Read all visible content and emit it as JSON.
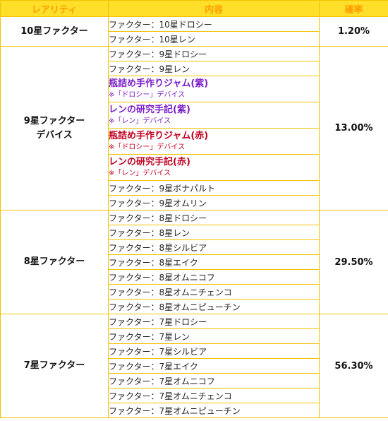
{
  "headers": {
    "rarity": "レアリティ",
    "contents": "内容",
    "rate": "確率"
  },
  "groups": [
    {
      "rarity_lines": [
        "10星ファクター"
      ],
      "rate": "1.20%",
      "items": [
        {
          "kind": "plain",
          "text": "ファクター：10星ドロシー"
        },
        {
          "kind": "plain",
          "text": "ファクター：10星レン"
        }
      ]
    },
    {
      "rarity_lines": [
        "9星ファクター",
        "デバイス"
      ],
      "rate": "13.00%",
      "items": [
        {
          "kind": "plain",
          "text": "ファクター：9星ドロシー"
        },
        {
          "kind": "plain",
          "text": "ファクター：9星レン"
        },
        {
          "kind": "device",
          "color": "#7a1ec8",
          "name": "瓶詰め手作りジャム(紫)",
          "note": "※「ドロシー」デバイス"
        },
        {
          "kind": "device",
          "color": "#7a1ec8",
          "name": "レンの研究手記(紫)",
          "note": "※「レン」デバイス"
        },
        {
          "kind": "device",
          "color": "#c0001e",
          "name": "瓶詰め手作りジャム(赤)",
          "note": "※「ドロシー」デバイス"
        },
        {
          "kind": "device",
          "color": "#c0001e",
          "name": "レンの研究手記(赤)",
          "note": "※「レン」デバイス"
        },
        {
          "kind": "plain",
          "text": "ファクター：9星ボナパルト"
        },
        {
          "kind": "plain",
          "text": "ファクター：9星オムリン"
        }
      ]
    },
    {
      "rarity_lines": [
        "8星ファクター"
      ],
      "rate": "29.50%",
      "items": [
        {
          "kind": "plain",
          "text": "ファクター：8星ドロシー"
        },
        {
          "kind": "plain",
          "text": "ファクター：8星レン"
        },
        {
          "kind": "plain",
          "text": "ファクター：8星シルビア"
        },
        {
          "kind": "plain",
          "text": "ファクター：8星エイク"
        },
        {
          "kind": "plain",
          "text": "ファクター：8星オムニコフ"
        },
        {
          "kind": "plain",
          "text": "ファクター：8星オムニチェンコ"
        },
        {
          "kind": "plain",
          "text": "ファクター：8星オムニピューチン"
        }
      ]
    },
    {
      "rarity_lines": [
        "7星ファクター"
      ],
      "rate": "56.30%",
      "items": [
        {
          "kind": "plain",
          "text": "ファクター：7星ドロシー"
        },
        {
          "kind": "plain",
          "text": "ファクター：7星レン"
        },
        {
          "kind": "plain",
          "text": "ファクター：7星シルビア"
        },
        {
          "kind": "plain",
          "text": "ファクター：7星エイク"
        },
        {
          "kind": "plain",
          "text": "ファクター：7星オムニコフ"
        },
        {
          "kind": "plain",
          "text": "ファクター：7星オムニチェンコ"
        },
        {
          "kind": "plain",
          "text": "ファクター：7星オムニピューチン"
        }
      ]
    }
  ]
}
